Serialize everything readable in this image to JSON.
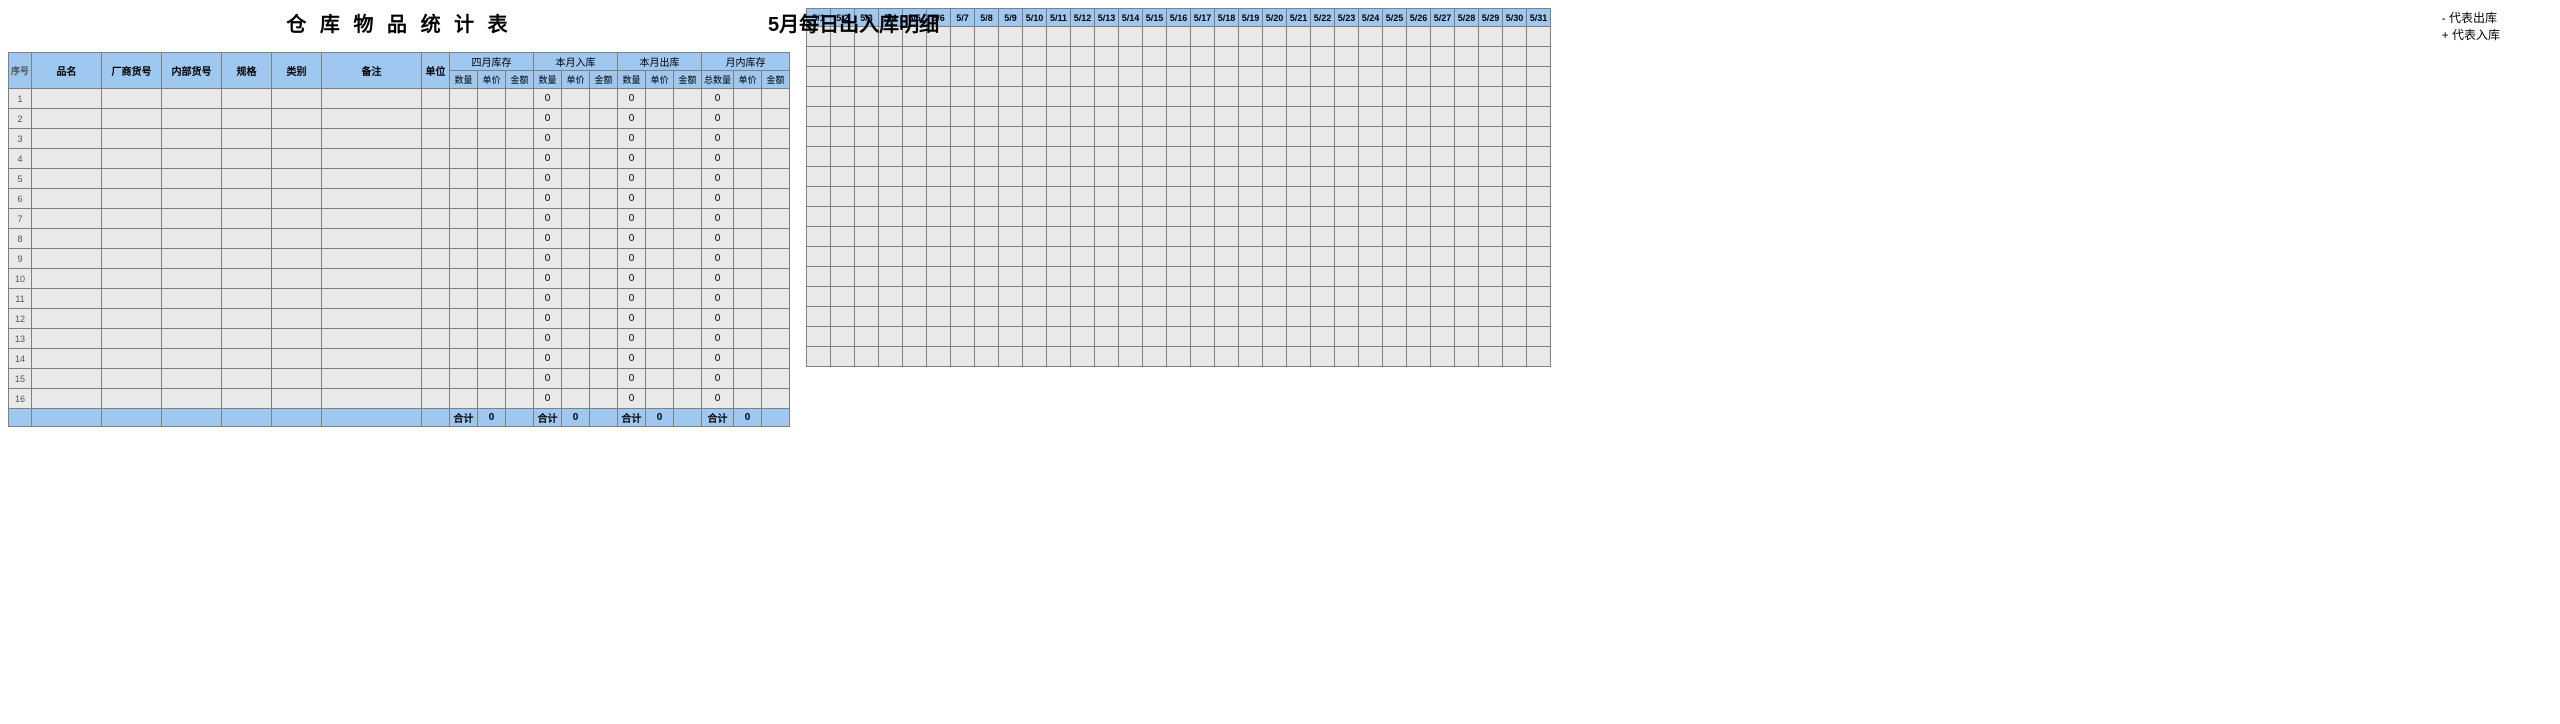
{
  "left": {
    "title": "仓 库 物 品 统 计 表",
    "header_row1": [
      "序号",
      "品名",
      "厂商货号",
      "内部货号",
      "规格",
      "类别",
      "备注",
      "单位"
    ],
    "group_headers": [
      "四月库存",
      "本月入库",
      "本月出库",
      "月内库存"
    ],
    "sub_headers": {
      "std": [
        "数量",
        "单价",
        "金额"
      ],
      "last": [
        "总数量",
        "单价",
        "金额"
      ]
    },
    "row_count": 16,
    "row_default": {
      "qty_in": "0",
      "qty_out": "0",
      "qty_bal": "0"
    },
    "footer": {
      "label": "合计",
      "v1": "0",
      "v2": "0",
      "v3": "0",
      "v4": "0"
    }
  },
  "right": {
    "title": "5月每日出入库明细",
    "legend1": "- 代表出库",
    "legend2": "+ 代表入库",
    "days": [
      "5/1",
      "5/2",
      "5/3",
      "5/4",
      "5/5",
      "5/6",
      "5/7",
      "5/8",
      "5/9",
      "5/10",
      "5/11",
      "5/12",
      "5/13",
      "5/14",
      "5/15",
      "5/16",
      "5/17",
      "5/18",
      "5/19",
      "5/20",
      "5/21",
      "5/22",
      "5/23",
      "5/24",
      "5/25",
      "5/26",
      "5/27",
      "5/28",
      "5/29",
      "5/30",
      "5/31"
    ],
    "row_count": 17
  },
  "colors": {
    "header_bg": "#9ec8f0",
    "cell_bg": "#e9e9e9",
    "border": "#808080"
  }
}
